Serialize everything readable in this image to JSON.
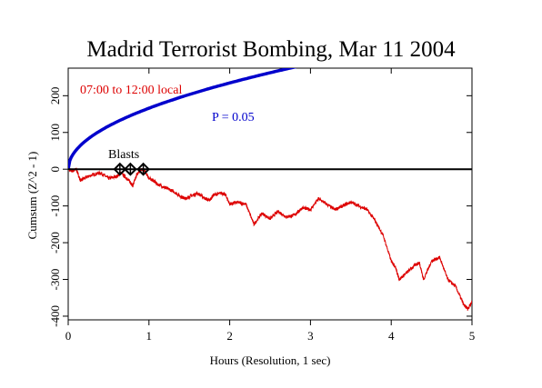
{
  "chart_data": {
    "type": "line",
    "title": "Madrid Terrorist Bombing, Mar 11 2004",
    "xlabel": "Hours (Resolution, 1 sec)",
    "ylabel": "Cumsum (Z^2 - 1)",
    "xlim": [
      0,
      5
    ],
    "ylim": [
      -410,
      275
    ],
    "x_ticks": [
      0,
      1,
      2,
      3,
      4,
      5
    ],
    "y_ticks": [
      -400,
      -300,
      -200,
      -100,
      0,
      100,
      200
    ],
    "grid": false,
    "series": [
      {
        "name": "07:00 to 12:00 local",
        "color": "#dd0000",
        "x": [
          0,
          0.05,
          0.1,
          0.15,
          0.2,
          0.3,
          0.4,
          0.5,
          0.6,
          0.65,
          0.75,
          0.8,
          0.85,
          0.9,
          0.95,
          1.0,
          1.05,
          1.1,
          1.2,
          1.3,
          1.4,
          1.45,
          1.5,
          1.6,
          1.7,
          1.75,
          1.8,
          1.9,
          1.95,
          2.0,
          2.1,
          2.2,
          2.3,
          2.4,
          2.5,
          2.6,
          2.7,
          2.8,
          2.9,
          3.0,
          3.1,
          3.2,
          3.3,
          3.4,
          3.5,
          3.6,
          3.7,
          3.8,
          3.9,
          4.0,
          4.05,
          4.1,
          4.2,
          4.3,
          4.35,
          4.4,
          4.5,
          4.6,
          4.7,
          4.8,
          4.9,
          4.95,
          5.0
        ],
        "y": [
          0,
          -5,
          0,
          -30,
          -25,
          -15,
          -10,
          -25,
          -20,
          -10,
          -30,
          -45,
          -15,
          0,
          -5,
          -25,
          -30,
          -40,
          -50,
          -60,
          -75,
          -80,
          -75,
          -65,
          -80,
          -85,
          -70,
          -65,
          -70,
          -95,
          -90,
          -95,
          -150,
          -120,
          -135,
          -115,
          -130,
          -125,
          -105,
          -110,
          -80,
          -95,
          -110,
          -100,
          -90,
          -100,
          -110,
          -140,
          -180,
          -250,
          -265,
          -300,
          -280,
          -260,
          -255,
          -300,
          -250,
          -240,
          -300,
          -320,
          -370,
          -380,
          -360
        ]
      },
      {
        "name": "P = 0.05",
        "color": "#0000cc",
        "formula": "1.96 * sqrt(2 * seconds)",
        "x": [
          0,
          0.1,
          0.25,
          0.5,
          1.0,
          1.5,
          2.0,
          2.5,
          3.0,
          3.5,
          3.75
        ],
        "y": [
          0,
          53,
          83,
          118,
          166,
          204,
          235,
          263,
          288,
          311,
          322
        ]
      }
    ],
    "baseline": {
      "y": 0,
      "color": "#000000"
    },
    "annotations": {
      "series_label": "07:00 to 12:00 local",
      "p_label": "P = 0.05",
      "blasts_label": "Blasts"
    },
    "blasts": [
      {
        "x": 0.64,
        "y": 0
      },
      {
        "x": 0.77,
        "y": 0
      },
      {
        "x": 0.93,
        "y": 0
      }
    ]
  }
}
